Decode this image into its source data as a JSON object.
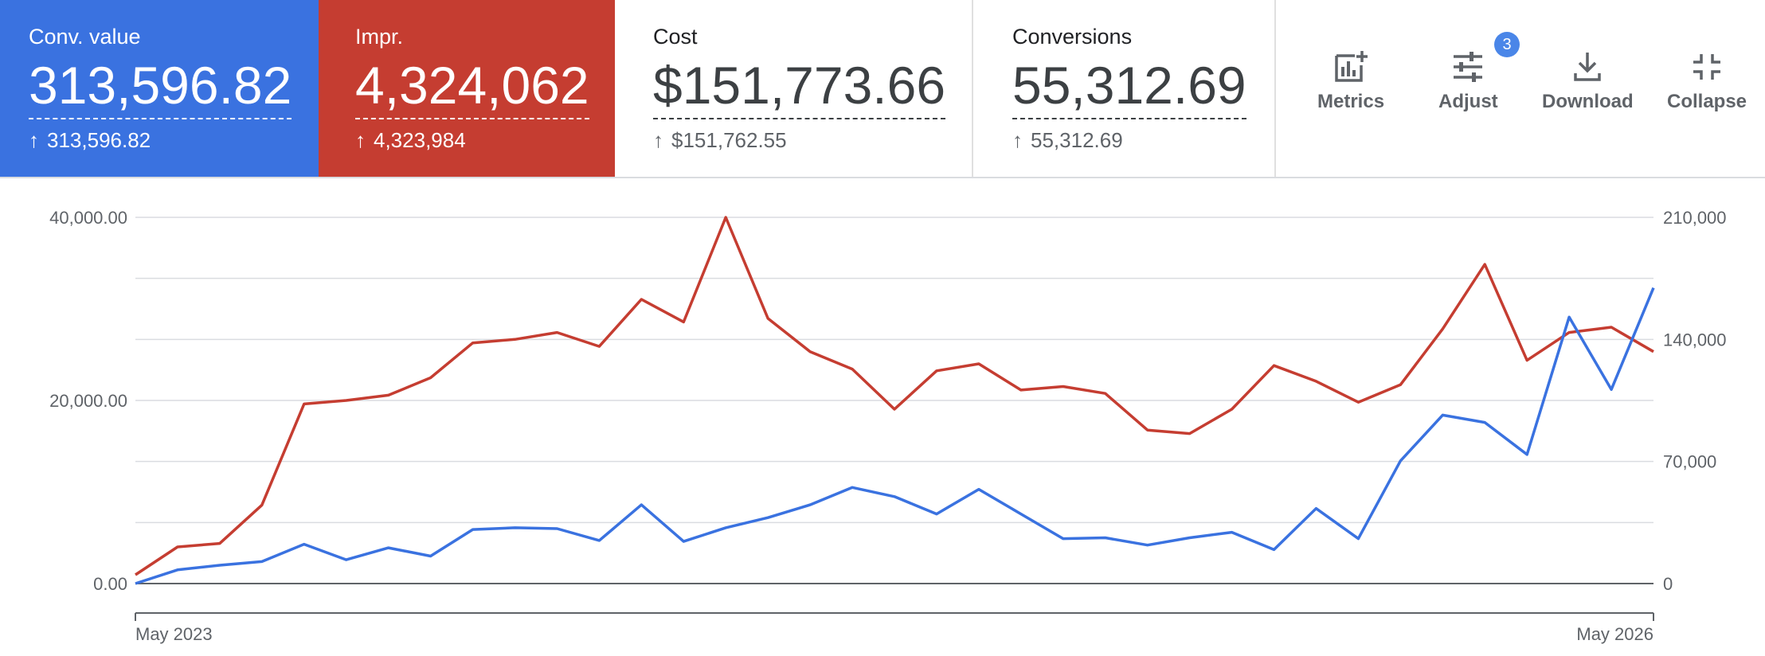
{
  "scorecards": [
    {
      "label": "Conv. value",
      "value": "313,596.82",
      "delta": "313,596.82",
      "color": "#3a72e0"
    },
    {
      "label": "Impr.",
      "value": "4,324,062",
      "delta": "4,323,984",
      "color": "#c53d31"
    },
    {
      "label": "Cost",
      "value": "$151,773.66",
      "delta": "$151,762.55"
    },
    {
      "label": "Conversions",
      "value": "55,312.69",
      "delta": "55,312.69"
    }
  ],
  "toolbar": {
    "metrics_label": "Metrics",
    "adjust_label": "Adjust",
    "adjust_badge": "3",
    "download_label": "Download",
    "collapse_label": "Collapse"
  },
  "chart_data": {
    "type": "line",
    "x_start_label": "May 2023",
    "x_end_label": "May 2026",
    "y_left": {
      "ticks": [
        "40,000.00",
        "20,000.00",
        "0.00"
      ],
      "range": [
        0,
        40000
      ]
    },
    "y_right": {
      "ticks": [
        "210,000",
        "140,000",
        "70,000",
        "0"
      ],
      "range": [
        0,
        210000
      ]
    },
    "series": [
      {
        "axis": "left",
        "color": "#3a72e0",
        "values": [
          0,
          1500,
          2000,
          2400,
          4300,
          2600,
          3900,
          3000,
          5900,
          6100,
          6000,
          4700,
          8600,
          4600,
          6100,
          7200,
          8600,
          10500,
          9500,
          7600,
          10300,
          7600,
          4900,
          5000,
          4200,
          5000,
          5600,
          3700,
          8200,
          4900,
          13400,
          18400,
          17600,
          14100,
          29100,
          21200,
          32300
        ]
      },
      {
        "axis": "right",
        "color": "#c53d31",
        "values": [
          5000,
          21000,
          23000,
          45000,
          103000,
          105000,
          108000,
          118000,
          138000,
          140000,
          144000,
          136000,
          163000,
          150000,
          210000,
          152000,
          133000,
          123000,
          100000,
          122000,
          126000,
          111000,
          113000,
          109000,
          88000,
          86000,
          100000,
          125000,
          116000,
          104000,
          114000,
          146000,
          183000,
          128000,
          144000,
          147000,
          133000
        ]
      }
    ],
    "grid": true
  }
}
